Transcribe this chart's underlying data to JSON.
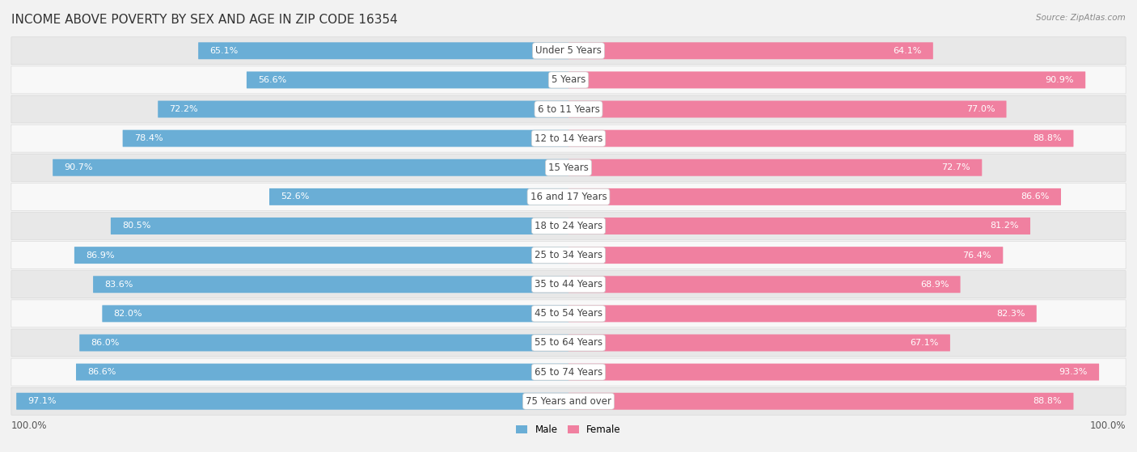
{
  "title": "INCOME ABOVE POVERTY BY SEX AND AGE IN ZIP CODE 16354",
  "source": "Source: ZipAtlas.com",
  "categories": [
    "Under 5 Years",
    "5 Years",
    "6 to 11 Years",
    "12 to 14 Years",
    "15 Years",
    "16 and 17 Years",
    "18 to 24 Years",
    "25 to 34 Years",
    "35 to 44 Years",
    "45 to 54 Years",
    "55 to 64 Years",
    "65 to 74 Years",
    "75 Years and over"
  ],
  "male_values": [
    65.1,
    56.6,
    72.2,
    78.4,
    90.7,
    52.6,
    80.5,
    86.9,
    83.6,
    82.0,
    86.0,
    86.6,
    97.1
  ],
  "female_values": [
    64.1,
    90.9,
    77.0,
    88.8,
    72.7,
    86.6,
    81.2,
    76.4,
    68.9,
    82.3,
    67.1,
    93.3,
    88.8
  ],
  "male_color": "#6aaed6",
  "female_color": "#f080a0",
  "male_light_color": "#b8d4ea",
  "female_light_color": "#f8c0d0",
  "bg_color": "#f2f2f2",
  "row_color_odd": "#e8e8e8",
  "row_color_even": "#f8f8f8",
  "title_fontsize": 11,
  "label_fontsize": 8.5,
  "value_fontsize": 8,
  "axis_label_fontsize": 8.5,
  "x_max": 100.0,
  "legend_labels": [
    "Male",
    "Female"
  ]
}
